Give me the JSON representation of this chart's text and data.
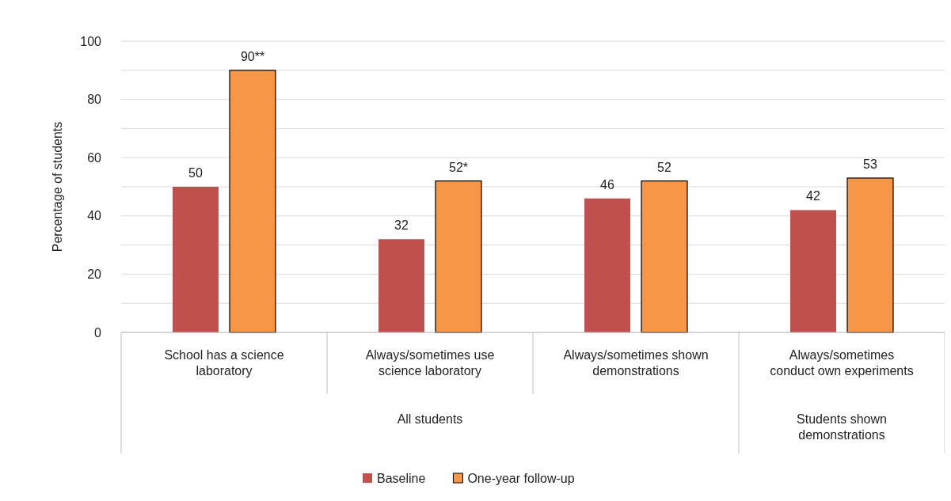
{
  "chart_data": {
    "type": "bar",
    "ylabel": "Percentage of students",
    "categories": [
      "School has a science laboratory",
      "Always/sometimes use science laboratory",
      "Always/sometimes shown demonstrations",
      "Always/sometimes conduct own experiments"
    ],
    "series": [
      {
        "name": "Baseline",
        "color": "#c0504d",
        "values": [
          50,
          32,
          46,
          42
        ],
        "value_labels": [
          "50",
          "32",
          "46",
          "42"
        ]
      },
      {
        "name": "One-year follow-up",
        "color": "#f79646",
        "values": [
          90,
          52,
          52,
          53
        ],
        "value_labels": [
          "90**",
          "52*",
          "52",
          "53"
        ]
      }
    ],
    "ylim": [
      0,
      100
    ],
    "yticks": [
      0,
      {
        "value": 10,
        "label": null
      },
      20,
      {
        "value": 30,
        "label": null
      },
      40,
      {
        "value": 50,
        "label": null
      },
      60,
      {
        "value": 70,
        "label": null
      },
      80,
      {
        "value": 90,
        "label": null
      },
      100
    ],
    "grid": "y",
    "legend": "bottom",
    "annotations": [
      "All students",
      "Students shown demonstrations"
    ]
  }
}
